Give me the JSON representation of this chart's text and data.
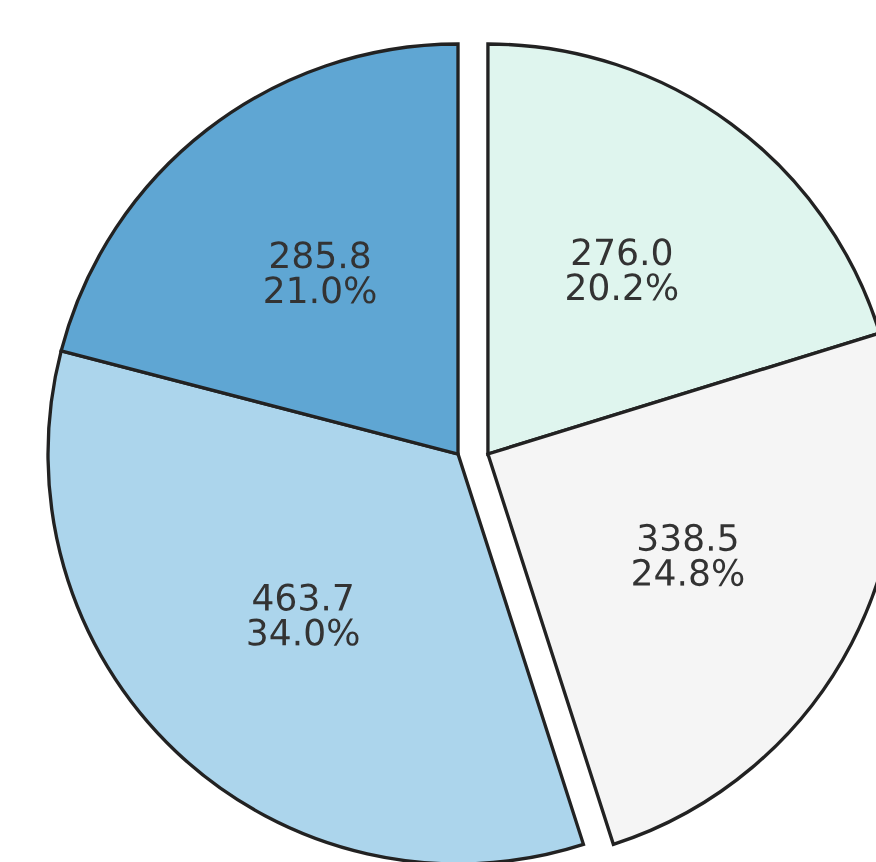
{
  "chart_data": {
    "type": "pie",
    "categories": [
      null,
      null,
      null,
      null
    ],
    "values": [
      276.0,
      338.5,
      463.7,
      285.8
    ],
    "colors": [
      "#dff5ee",
      "#f5f5f5",
      "#acd5ec",
      "#5fa6d3"
    ],
    "value_labels": [
      "276.0\n20.2%",
      "338.5\n24.8%",
      "463.7\n34.0%",
      "285.8\n21.0%"
    ]
  }
}
